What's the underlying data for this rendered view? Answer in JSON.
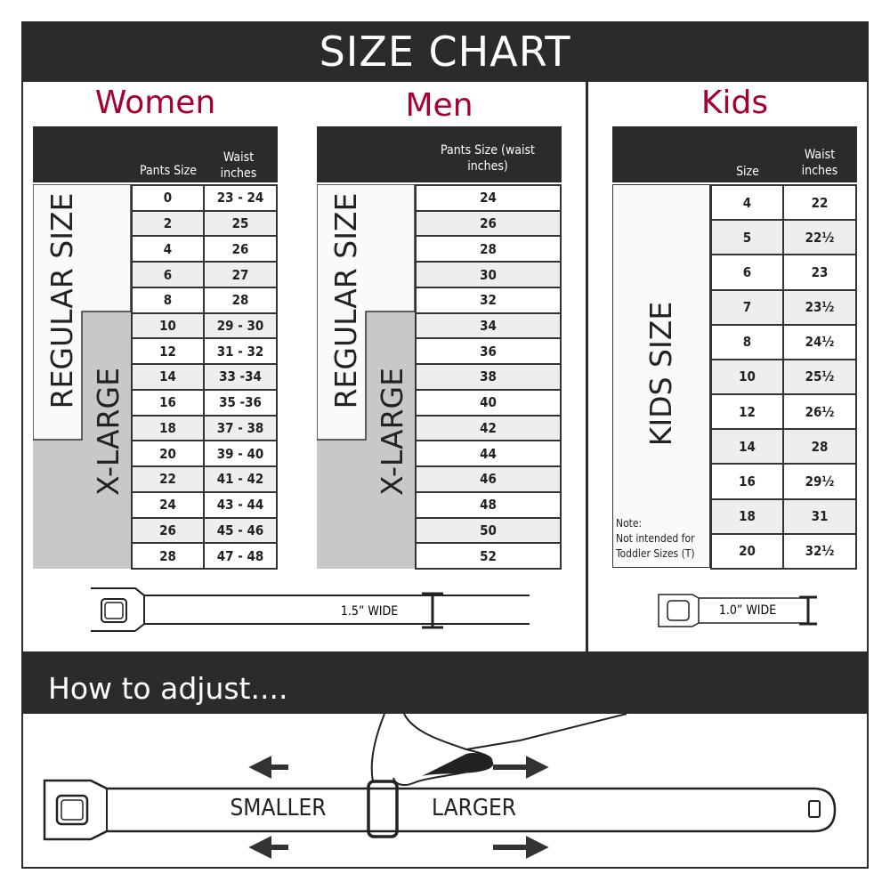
{
  "title": "SIZE CHART",
  "women": {
    "title": "Women",
    "headers": [
      "Pants Size",
      "Waist inches"
    ],
    "regular_label": "REGULAR SIZE",
    "xlarge_label": "X-LARGE",
    "rows": [
      [
        "0",
        "23 - 24"
      ],
      [
        "2",
        "25"
      ],
      [
        "4",
        "26"
      ],
      [
        "6",
        "27"
      ],
      [
        "8",
        "28"
      ],
      [
        "10",
        "29 - 30"
      ],
      [
        "12",
        "31 - 32"
      ],
      [
        "14",
        "33 -34"
      ],
      [
        "16",
        "35 -36"
      ],
      [
        "18",
        "37 - 38"
      ],
      [
        "20",
        "39 - 40"
      ],
      [
        "22",
        "41 - 42"
      ],
      [
        "24",
        "43 - 44"
      ],
      [
        "26",
        "45 - 46"
      ],
      [
        "28",
        "47 - 48"
      ]
    ],
    "belt_width": "1.5” WIDE"
  },
  "men": {
    "title": "Men",
    "header": "Pants Size (waist inches)",
    "regular_label": "REGULAR SIZE",
    "xlarge_label": "X-LARGE",
    "rows": [
      "24",
      "26",
      "28",
      "30",
      "32",
      "34",
      "36",
      "38",
      "40",
      "42",
      "44",
      "46",
      "48",
      "50",
      "52"
    ]
  },
  "kids": {
    "title": "Kids",
    "headers": [
      "Size",
      "Waist inches"
    ],
    "label": "KIDS SIZE",
    "note_title": "Note:",
    "note_line1": "Not intended for",
    "note_line2": "Toddler Sizes (T)",
    "rows": [
      [
        "4",
        "22"
      ],
      [
        "5",
        "22½"
      ],
      [
        "6",
        "23"
      ],
      [
        "7",
        "23½"
      ],
      [
        "8",
        "24½"
      ],
      [
        "10",
        "25½"
      ],
      [
        "12",
        "26½"
      ],
      [
        "14",
        "28"
      ],
      [
        "16",
        "29½"
      ],
      [
        "18",
        "31"
      ],
      [
        "20",
        "32½"
      ]
    ],
    "belt_width": "1.0” WIDE"
  },
  "adjust": {
    "title": "How to adjust....",
    "smaller": "SMALLER",
    "larger": "LARGER"
  },
  "colors": {
    "dark": "#2b2b2b",
    "accent": "#a8002e",
    "xlarge_gray": "#c8c8c8",
    "row_alt": "#eeeeee"
  }
}
